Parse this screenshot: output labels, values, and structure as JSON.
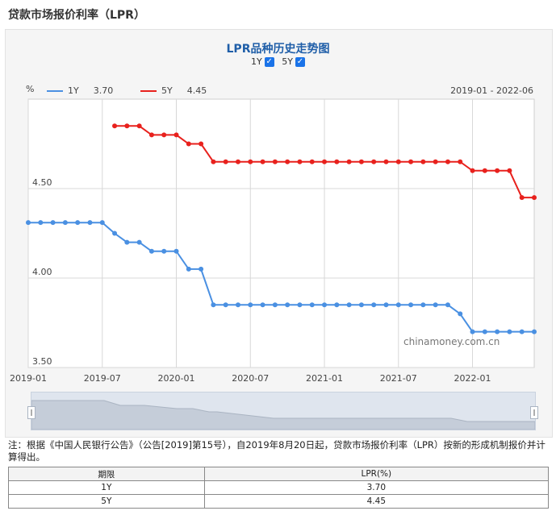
{
  "page": {
    "title": "贷款市场报价利率（LPR）"
  },
  "controls": {
    "toggles": [
      {
        "label": "1Y",
        "checked": true
      },
      {
        "label": "5Y",
        "checked": true
      }
    ]
  },
  "chart_data": {
    "type": "line",
    "title": "LPR品种历史走势图",
    "ylabel": "%",
    "date_range": "2019-01 - 2022-06",
    "watermark": "chinamoney.com.cn",
    "ylim": [
      3.5,
      5.0
    ],
    "xlim": [
      "2019-01",
      "2022-06"
    ],
    "yticks": [
      "3.50",
      "4.00",
      "4.50"
    ],
    "xticks": [
      "2019-01",
      "2019-07",
      "2020-01",
      "2020-07",
      "2021-01",
      "2021-07",
      "2022-01"
    ],
    "grid": true,
    "legend_position": "top",
    "series": [
      {
        "name": "1Y",
        "legend_value": "3.70",
        "color": "#4a90e2",
        "x": [
          "2019-01",
          "2019-02",
          "2019-03",
          "2019-04",
          "2019-05",
          "2019-06",
          "2019-07",
          "2019-08",
          "2019-09",
          "2019-10",
          "2019-11",
          "2019-12",
          "2020-01",
          "2020-02",
          "2020-03",
          "2020-04",
          "2020-05",
          "2020-06",
          "2020-07",
          "2020-08",
          "2020-09",
          "2020-10",
          "2020-11",
          "2020-12",
          "2021-01",
          "2021-02",
          "2021-03",
          "2021-04",
          "2021-05",
          "2021-06",
          "2021-07",
          "2021-08",
          "2021-09",
          "2021-10",
          "2021-11",
          "2021-12",
          "2022-01",
          "2022-02",
          "2022-03",
          "2022-04",
          "2022-05",
          "2022-06"
        ],
        "values": [
          4.31,
          4.31,
          4.31,
          4.31,
          4.31,
          4.31,
          4.31,
          4.25,
          4.2,
          4.2,
          4.15,
          4.15,
          4.15,
          4.05,
          4.05,
          3.85,
          3.85,
          3.85,
          3.85,
          3.85,
          3.85,
          3.85,
          3.85,
          3.85,
          3.85,
          3.85,
          3.85,
          3.85,
          3.85,
          3.85,
          3.85,
          3.85,
          3.85,
          3.85,
          3.85,
          3.8,
          3.7,
          3.7,
          3.7,
          3.7,
          3.7,
          3.7
        ]
      },
      {
        "name": "5Y",
        "legend_value": "4.45",
        "color": "#e8211d",
        "x": [
          "2019-08",
          "2019-09",
          "2019-10",
          "2019-11",
          "2019-12",
          "2020-01",
          "2020-02",
          "2020-03",
          "2020-04",
          "2020-05",
          "2020-06",
          "2020-07",
          "2020-08",
          "2020-09",
          "2020-10",
          "2020-11",
          "2020-12",
          "2021-01",
          "2021-02",
          "2021-03",
          "2021-04",
          "2021-05",
          "2021-06",
          "2021-07",
          "2021-08",
          "2021-09",
          "2021-10",
          "2021-11",
          "2021-12",
          "2022-01",
          "2022-02",
          "2022-03",
          "2022-04",
          "2022-05",
          "2022-06"
        ],
        "values": [
          4.85,
          4.85,
          4.85,
          4.8,
          4.8,
          4.8,
          4.75,
          4.75,
          4.65,
          4.65,
          4.65,
          4.65,
          4.65,
          4.65,
          4.65,
          4.65,
          4.65,
          4.65,
          4.65,
          4.65,
          4.65,
          4.65,
          4.65,
          4.65,
          4.65,
          4.65,
          4.65,
          4.65,
          4.65,
          4.6,
          4.6,
          4.6,
          4.6,
          4.45,
          4.45
        ]
      }
    ]
  },
  "note": "注：根据《中国人民银行公告》（公告[2019]第15号），自2019年8月20日起，贷款市场报价利率（LPR）按新的形成机制报价并计算得出。",
  "table": {
    "headers": [
      "期限",
      "LPR(%)"
    ],
    "rows": [
      [
        "1Y",
        "3.70"
      ],
      [
        "5Y",
        "4.45"
      ]
    ]
  }
}
